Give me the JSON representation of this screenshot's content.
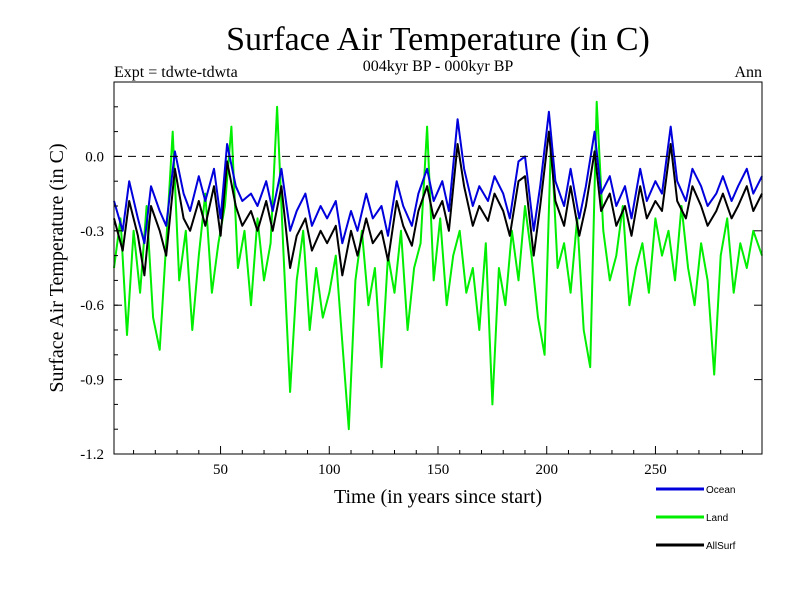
{
  "chart_data": {
    "type": "line",
    "title": "Surface Air Temperature (in C)",
    "subtitle": "004kyr BP - 000kyr BP",
    "expt_label": "Expt = tdwte-tdwta",
    "season_label": "Ann",
    "xlabel": "Time (in years since start)",
    "ylabel": "Surface Air Temperature (in C)",
    "xlim": [
      1,
      299
    ],
    "ylim": [
      -1.2,
      0.3
    ],
    "xticks": [
      50,
      100,
      150,
      200,
      250
    ],
    "yticks": [
      0.0,
      -0.3,
      -0.6,
      -0.9,
      -1.2
    ],
    "ytick_labels": [
      "0.0",
      "-0.3",
      "-0.6",
      "-0.9",
      "-1.2"
    ],
    "reference_line": 0.0,
    "legend_position": "bottom-right, outside plot",
    "series": [
      {
        "name": "Ocean",
        "color": "#0000dd",
        "x": [
          1,
          5,
          8,
          12,
          15,
          18,
          22,
          25,
          29,
          33,
          36,
          40,
          43,
          47,
          50,
          53,
          57,
          60,
          64,
          67,
          71,
          74,
          78,
          82,
          85,
          89,
          92,
          96,
          99,
          103,
          106,
          110,
          113,
          117,
          120,
          124,
          127,
          131,
          134,
          138,
          141,
          145,
          148,
          152,
          155,
          159,
          162,
          166,
          169,
          173,
          176,
          180,
          183,
          187,
          190,
          194,
          197,
          201,
          204,
          208,
          211,
          215,
          218,
          222,
          225,
          229,
          232,
          236,
          239,
          243,
          246,
          250,
          253,
          257,
          260,
          264,
          267,
          271,
          274,
          278,
          281,
          285,
          288,
          292,
          295,
          299
        ],
        "values": [
          -0.18,
          -0.3,
          -0.1,
          -0.25,
          -0.35,
          -0.12,
          -0.22,
          -0.28,
          0.02,
          -0.15,
          -0.22,
          -0.08,
          -0.18,
          -0.05,
          -0.25,
          0.05,
          -0.12,
          -0.18,
          -0.15,
          -0.2,
          -0.1,
          -0.22,
          -0.05,
          -0.3,
          -0.22,
          -0.15,
          -0.28,
          -0.2,
          -0.25,
          -0.18,
          -0.35,
          -0.22,
          -0.3,
          -0.15,
          -0.25,
          -0.2,
          -0.32,
          -0.1,
          -0.2,
          -0.28,
          -0.15,
          -0.05,
          -0.18,
          -0.1,
          -0.22,
          0.15,
          -0.05,
          -0.2,
          -0.12,
          -0.18,
          -0.08,
          -0.15,
          -0.25,
          -0.02,
          0.0,
          -0.3,
          -0.12,
          0.18,
          -0.1,
          -0.2,
          -0.05,
          -0.25,
          -0.12,
          0.1,
          -0.15,
          -0.08,
          -0.2,
          -0.12,
          -0.25,
          -0.05,
          -0.18,
          -0.1,
          -0.15,
          0.12,
          -0.1,
          -0.18,
          -0.05,
          -0.12,
          -0.2,
          -0.15,
          -0.08,
          -0.18,
          -0.12,
          -0.05,
          -0.15,
          -0.08
        ]
      },
      {
        "name": "Land",
        "color": "#00ee00",
        "x": [
          1,
          4,
          7,
          10,
          13,
          16,
          19,
          22,
          25,
          28,
          31,
          34,
          37,
          40,
          43,
          46,
          49,
          52,
          55,
          58,
          61,
          64,
          67,
          70,
          73,
          76,
          79,
          82,
          85,
          88,
          91,
          94,
          97,
          100,
          103,
          106,
          109,
          112,
          115,
          118,
          121,
          124,
          127,
          130,
          133,
          136,
          139,
          142,
          145,
          148,
          151,
          154,
          157,
          160,
          163,
          166,
          169,
          172,
          175,
          178,
          181,
          184,
          187,
          190,
          193,
          196,
          199,
          202,
          205,
          208,
          211,
          214,
          217,
          220,
          223,
          226,
          229,
          232,
          235,
          238,
          241,
          244,
          247,
          250,
          253,
          256,
          259,
          262,
          265,
          268,
          271,
          274,
          277,
          280,
          283,
          286,
          289,
          292,
          295,
          299
        ],
        "values": [
          -0.45,
          -0.25,
          -0.72,
          -0.3,
          -0.55,
          -0.2,
          -0.65,
          -0.78,
          -0.35,
          0.1,
          -0.5,
          -0.3,
          -0.7,
          -0.4,
          -0.15,
          -0.55,
          -0.35,
          -0.2,
          0.12,
          -0.45,
          -0.3,
          -0.6,
          -0.25,
          -0.5,
          -0.35,
          0.2,
          -0.4,
          -0.95,
          -0.5,
          -0.3,
          -0.7,
          -0.45,
          -0.65,
          -0.55,
          -0.4,
          -0.75,
          -1.1,
          -0.5,
          -0.3,
          -0.6,
          -0.45,
          -0.85,
          -0.4,
          -0.55,
          -0.3,
          -0.7,
          -0.45,
          -0.35,
          0.12,
          -0.5,
          -0.25,
          -0.6,
          -0.4,
          -0.3,
          -0.55,
          -0.45,
          -0.7,
          -0.35,
          -1.0,
          -0.45,
          -0.6,
          -0.3,
          -0.5,
          -0.2,
          -0.4,
          -0.65,
          -0.8,
          0.08,
          -0.45,
          -0.35,
          -0.55,
          -0.25,
          -0.7,
          -0.85,
          0.22,
          -0.3,
          -0.5,
          -0.4,
          -0.2,
          -0.6,
          -0.45,
          -0.35,
          -0.55,
          -0.25,
          -0.4,
          -0.3,
          -0.5,
          -0.2,
          -0.45,
          -0.6,
          -0.35,
          -0.5,
          -0.88,
          -0.4,
          -0.25,
          -0.55,
          -0.35,
          -0.45,
          -0.3,
          -0.4
        ]
      },
      {
        "name": "AllSurf",
        "color": "#000000",
        "x": [
          1,
          5,
          8,
          12,
          15,
          18,
          22,
          25,
          29,
          33,
          36,
          40,
          43,
          47,
          50,
          53,
          57,
          60,
          64,
          67,
          71,
          74,
          78,
          82,
          85,
          89,
          92,
          96,
          99,
          103,
          106,
          110,
          113,
          117,
          120,
          124,
          127,
          131,
          134,
          138,
          141,
          145,
          148,
          152,
          155,
          159,
          162,
          166,
          169,
          173,
          176,
          180,
          183,
          187,
          190,
          194,
          197,
          201,
          204,
          208,
          211,
          215,
          218,
          222,
          225,
          229,
          232,
          236,
          239,
          243,
          246,
          250,
          253,
          257,
          260,
          264,
          267,
          271,
          274,
          278,
          281,
          285,
          288,
          292,
          295,
          299
        ],
        "values": [
          -0.25,
          -0.38,
          -0.18,
          -0.32,
          -0.48,
          -0.2,
          -0.3,
          -0.4,
          -0.05,
          -0.25,
          -0.3,
          -0.18,
          -0.28,
          -0.12,
          -0.32,
          -0.02,
          -0.2,
          -0.28,
          -0.22,
          -0.3,
          -0.18,
          -0.3,
          -0.12,
          -0.45,
          -0.32,
          -0.25,
          -0.38,
          -0.3,
          -0.35,
          -0.28,
          -0.48,
          -0.3,
          -0.4,
          -0.25,
          -0.35,
          -0.3,
          -0.42,
          -0.18,
          -0.28,
          -0.36,
          -0.22,
          -0.12,
          -0.25,
          -0.18,
          -0.3,
          0.05,
          -0.12,
          -0.28,
          -0.2,
          -0.26,
          -0.15,
          -0.22,
          -0.32,
          -0.1,
          -0.08,
          -0.4,
          -0.2,
          0.1,
          -0.18,
          -0.28,
          -0.12,
          -0.32,
          -0.2,
          0.02,
          -0.22,
          -0.15,
          -0.28,
          -0.2,
          -0.32,
          -0.12,
          -0.25,
          -0.18,
          -0.22,
          0.05,
          -0.18,
          -0.25,
          -0.12,
          -0.2,
          -0.28,
          -0.22,
          -0.15,
          -0.25,
          -0.2,
          -0.12,
          -0.22,
          -0.15
        ]
      }
    ]
  }
}
